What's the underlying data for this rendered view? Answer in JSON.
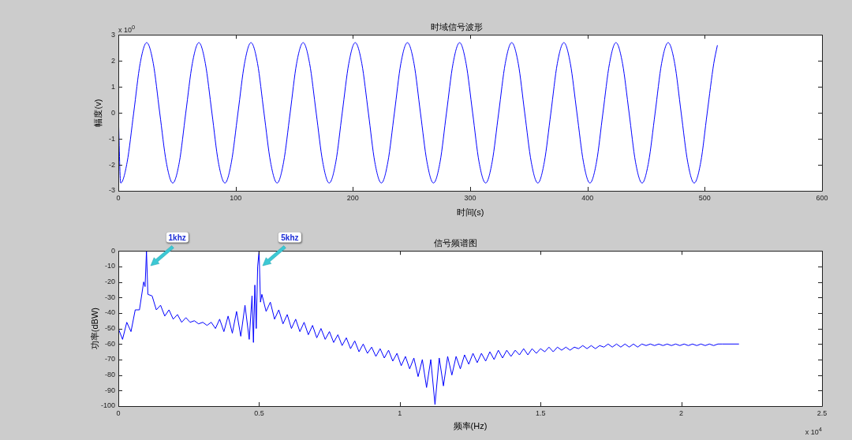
{
  "chart_data": [
    {
      "type": "line",
      "title": "时域信号波形",
      "xlabel": "时间(s)",
      "ylabel": "幅度(v)",
      "x": [
        0,
        2.0,
        7.5,
        13.1,
        18.6,
        24.2,
        29.8,
        35.3,
        40.9,
        46.4,
        52.0,
        57.5,
        63.1,
        68.7,
        74.2,
        79.8,
        85.3,
        90.9,
        96.4,
        102.0,
        107.6,
        113.1,
        118.7,
        124.2,
        129.8,
        135.4,
        140.9,
        146.5,
        152.0,
        157.6,
        163.1,
        168.7,
        174.3,
        179.8,
        185.4,
        190.9,
        196.5,
        202.0,
        207.6,
        213.2,
        218.7,
        224.3,
        229.8,
        235.4,
        240.9,
        246.5,
        252.1,
        257.6,
        263.2,
        268.7,
        274.3,
        279.8,
        285.4,
        291.0,
        296.5,
        302.1,
        307.6,
        313.2,
        318.7,
        324.3,
        329.9,
        335.4,
        341.0,
        346.5,
        352.1,
        357.7,
        363.2,
        368.8,
        374.3,
        379.9,
        385.4,
        391.0,
        396.6,
        402.1,
        407.7,
        413.2,
        418.8,
        424.3,
        429.9,
        435.5,
        441.0,
        446.6,
        452.1,
        457.7,
        463.2,
        468.8,
        474.4,
        479.9,
        485.5,
        491.0,
        496.6,
        502.1,
        507.7,
        510.8
      ],
      "series": [
        {
          "color": "#0000ff",
          "values": [
            0,
            -2.7,
            -1.9,
            0,
            1.9,
            2.7,
            1.9,
            0,
            -1.9,
            -2.7,
            -1.9,
            0,
            1.9,
            2.7,
            1.9,
            0,
            -1.9,
            -2.7,
            -1.9,
            0,
            1.9,
            2.7,
            1.9,
            0,
            -1.9,
            -2.7,
            -1.9,
            0,
            1.9,
            2.7,
            1.9,
            0,
            -1.9,
            -2.7,
            -1.9,
            0,
            1.9,
            2.7,
            1.9,
            0,
            -1.9,
            -2.7,
            -1.9,
            0,
            1.9,
            2.7,
            1.9,
            0,
            -1.9,
            -2.7,
            -1.9,
            0,
            1.9,
            2.7,
            1.9,
            0,
            -1.9,
            -2.7,
            -1.9,
            0,
            1.9,
            2.7,
            1.9,
            0,
            -1.9,
            -2.7,
            -1.9,
            0,
            1.9,
            2.7,
            1.9,
            0,
            -1.9,
            -2.7,
            -1.9,
            0,
            1.9,
            2.7,
            1.9,
            0,
            -1.9,
            -2.7,
            -1.9,
            0,
            1.9,
            2.7,
            1.9,
            0,
            -1.9,
            -2.7,
            -1.9,
            0,
            1.9,
            2.6
          ]
        }
      ],
      "xlim": [
        0,
        600
      ],
      "xticks": [
        0,
        100,
        200,
        300,
        400,
        500,
        600
      ],
      "ylim": [
        -3,
        3
      ],
      "yticks": [
        -3,
        -2,
        -1,
        0,
        1,
        2,
        3
      ],
      "annotations": [
        "x 10$^{0}$"
      ]
    },
    {
      "type": "line",
      "title": "信号频谱图",
      "xlabel": "频率(Hz)",
      "ylabel": "功率(dBW)",
      "x": [
        0,
        0.015,
        0.03,
        0.045,
        0.06,
        0.075,
        0.09,
        0.095,
        0.1,
        0.105,
        0.12,
        0.135,
        0.15,
        0.165,
        0.18,
        0.195,
        0.21,
        0.225,
        0.24,
        0.255,
        0.27,
        0.285,
        0.3,
        0.315,
        0.33,
        0.345,
        0.36,
        0.375,
        0.39,
        0.405,
        0.42,
        0.435,
        0.45,
        0.465,
        0.475,
        0.48,
        0.485,
        0.49,
        0.495,
        0.5,
        0.505,
        0.51,
        0.525,
        0.54,
        0.555,
        0.57,
        0.585,
        0.6,
        0.615,
        0.63,
        0.645,
        0.66,
        0.675,
        0.69,
        0.705,
        0.72,
        0.735,
        0.75,
        0.765,
        0.78,
        0.795,
        0.81,
        0.825,
        0.84,
        0.855,
        0.87,
        0.885,
        0.9,
        0.915,
        0.93,
        0.945,
        0.96,
        0.975,
        0.99,
        1.005,
        1.02,
        1.035,
        1.05,
        1.065,
        1.08,
        1.095,
        1.11,
        1.125,
        1.14,
        1.155,
        1.17,
        1.185,
        1.2,
        1.215,
        1.23,
        1.245,
        1.26,
        1.275,
        1.29,
        1.305,
        1.32,
        1.335,
        1.35,
        1.365,
        1.38,
        1.395,
        1.41,
        1.425,
        1.44,
        1.455,
        1.47,
        1.485,
        1.5,
        1.515,
        1.53,
        1.545,
        1.56,
        1.575,
        1.59,
        1.605,
        1.62,
        1.635,
        1.65,
        1.665,
        1.68,
        1.695,
        1.71,
        1.725,
        1.74,
        1.755,
        1.77,
        1.785,
        1.8,
        1.815,
        1.83,
        1.845,
        1.86,
        1.875,
        1.89,
        1.905,
        1.92,
        1.935,
        1.95,
        1.965,
        1.98,
        1.995,
        2.01,
        2.025,
        2.04,
        2.055,
        2.07,
        2.085,
        2.1,
        2.115,
        2.13,
        2.145,
        2.205
      ],
      "series": [
        {
          "color": "#0000ff",
          "values": [
            -50,
            -57,
            -46,
            -52,
            -38,
            -38,
            -20,
            -23,
            0,
            -28,
            -29,
            -38,
            -35,
            -42,
            -38,
            -44,
            -41,
            -46,
            -43,
            -46,
            -45,
            -47,
            -46,
            -48,
            -46,
            -50,
            -44,
            -52,
            -42,
            -53,
            -39,
            -55,
            -35,
            -57,
            -29,
            -59,
            -22,
            -50,
            -10,
            0,
            -33,
            -28,
            -39,
            -33,
            -44,
            -38,
            -47,
            -41,
            -50,
            -44,
            -52,
            -46,
            -54,
            -48,
            -56,
            -50,
            -57,
            -52,
            -59,
            -54,
            -61,
            -56,
            -63,
            -58,
            -65,
            -60,
            -66,
            -62,
            -68,
            -63,
            -69,
            -64,
            -71,
            -66,
            -74,
            -68,
            -76,
            -69,
            -81,
            -70,
            -88,
            -70,
            -99,
            -69,
            -87,
            -68,
            -80,
            -68,
            -76,
            -67,
            -73,
            -66,
            -72,
            -66,
            -71,
            -65,
            -70,
            -64,
            -69,
            -64,
            -68,
            -64,
            -67,
            -63,
            -67,
            -63,
            -66,
            -63,
            -65,
            -62,
            -65,
            -62,
            -64,
            -62,
            -64,
            -62,
            -63,
            -61,
            -63,
            -61,
            -63,
            -61,
            -62,
            -60,
            -62,
            -60,
            -62,
            -60,
            -62,
            -60,
            -62,
            -60,
            -61,
            -60,
            -61,
            -60,
            -61,
            -60,
            -61,
            -60,
            -61,
            -60,
            -61,
            -60,
            -61,
            -60,
            -61,
            -60,
            -61,
            -60,
            -60,
            -60
          ]
        }
      ],
      "xlim": [
        0,
        2.5
      ],
      "xticks": [
        0,
        0.5,
        1,
        1.5,
        2,
        2.5
      ],
      "ylim": [
        -100,
        0
      ],
      "yticks": [
        -100,
        -90,
        -80,
        -70,
        -60,
        -50,
        -40,
        -30,
        -20,
        -10,
        0
      ],
      "annotations": [
        "1khz",
        "5khz",
        "x 10$^{4}$"
      ]
    }
  ]
}
